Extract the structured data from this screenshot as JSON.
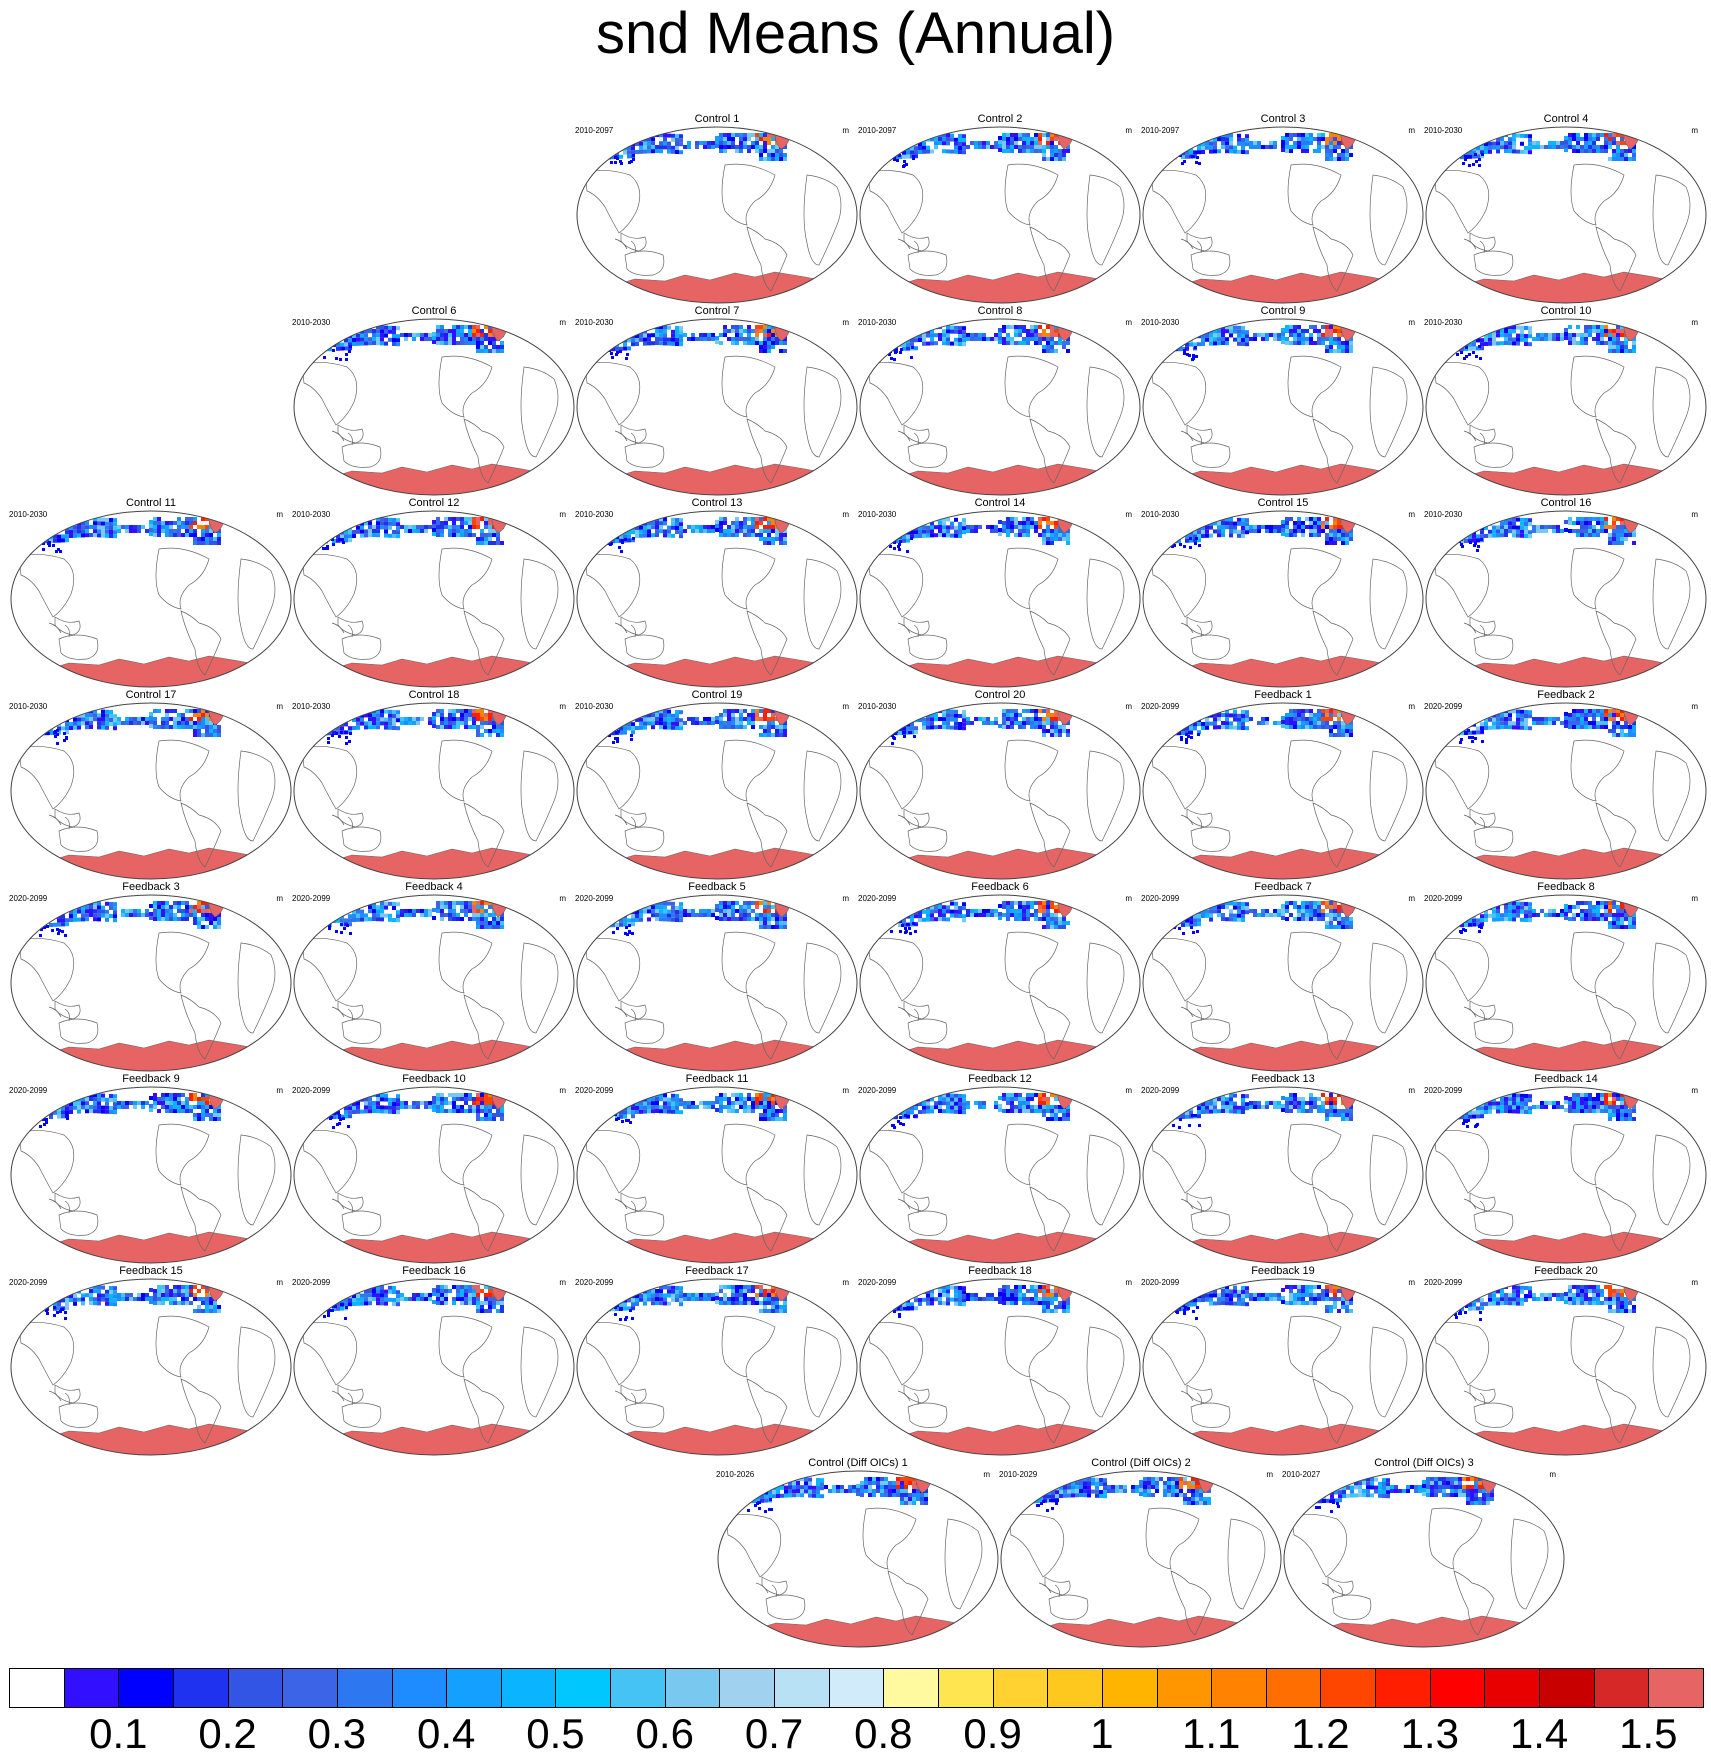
{
  "title": "snd Means (Annual)",
  "units": "m",
  "panels": [
    {
      "title": "Control 1",
      "period": "2010-2097"
    },
    {
      "title": "Control 2",
      "period": "2010-2097"
    },
    {
      "title": "Control 3",
      "period": "2010-2097"
    },
    {
      "title": "Control 4",
      "period": "2010-2030"
    },
    {
      "title": "Control 6",
      "period": "2010-2030"
    },
    {
      "title": "Control 7",
      "period": "2010-2030"
    },
    {
      "title": "Control 8",
      "period": "2010-2030"
    },
    {
      "title": "Control 9",
      "period": "2010-2030"
    },
    {
      "title": "Control 10",
      "period": "2010-2030"
    },
    {
      "title": "Control 11",
      "period": "2010-2030"
    },
    {
      "title": "Control 12",
      "period": "2010-2030"
    },
    {
      "title": "Control 13",
      "period": "2010-2030"
    },
    {
      "title": "Control 14",
      "period": "2010-2030"
    },
    {
      "title": "Control 15",
      "period": "2010-2030"
    },
    {
      "title": "Control 16",
      "period": "2010-2030"
    },
    {
      "title": "Control 17",
      "period": "2010-2030"
    },
    {
      "title": "Control 18",
      "period": "2010-2030"
    },
    {
      "title": "Control 19",
      "period": "2010-2030"
    },
    {
      "title": "Control 20",
      "period": "2010-2030"
    },
    {
      "title": "Feedback 1",
      "period": "2020-2099"
    },
    {
      "title": "Feedback 2",
      "period": "2020-2099"
    },
    {
      "title": "Feedback 3",
      "period": "2020-2099"
    },
    {
      "title": "Feedback 4",
      "period": "2020-2099"
    },
    {
      "title": "Feedback 5",
      "period": "2020-2099"
    },
    {
      "title": "Feedback 6",
      "period": "2020-2099"
    },
    {
      "title": "Feedback 7",
      "period": "2020-2099"
    },
    {
      "title": "Feedback 8",
      "period": "2020-2099"
    },
    {
      "title": "Feedback 9",
      "period": "2020-2099"
    },
    {
      "title": "Feedback 10",
      "period": "2020-2099"
    },
    {
      "title": "Feedback 11",
      "period": "2020-2099"
    },
    {
      "title": "Feedback 12",
      "period": "2020-2099"
    },
    {
      "title": "Feedback 13",
      "period": "2020-2099"
    },
    {
      "title": "Feedback 14",
      "period": "2020-2099"
    },
    {
      "title": "Feedback 15",
      "period": "2020-2099"
    },
    {
      "title": "Feedback 16",
      "period": "2020-2099"
    },
    {
      "title": "Feedback 17",
      "period": "2020-2099"
    },
    {
      "title": "Feedback 18",
      "period": "2020-2099"
    },
    {
      "title": "Feedback 19",
      "period": "2020-2099"
    },
    {
      "title": "Feedback 20",
      "period": "2020-2099"
    },
    {
      "title": "Control (Diff OICs) 1",
      "period": "2010-2026"
    },
    {
      "title": "Control (Diff OICs) 2",
      "period": "2010-2029"
    },
    {
      "title": "Control (Diff OICs) 3",
      "period": "2010-2027"
    }
  ],
  "colorbar": {
    "labels": [
      "0.1",
      "0.2",
      "0.3",
      "0.4",
      "0.5",
      "0.6",
      "0.7",
      "0.8",
      "0.9",
      "1",
      "1.1",
      "1.2",
      "1.3",
      "1.4",
      "1.5"
    ],
    "colors": [
      "#ffffff",
      "#3210ff",
      "#0000ff",
      "#1e32f0",
      "#3255e6",
      "#3c64e6",
      "#2d78f0",
      "#1e8cff",
      "#14a0ff",
      "#0ab4ff",
      "#00c8ff",
      "#46c3f5",
      "#78c8f0",
      "#a0d2f0",
      "#b9e1f5",
      "#d2ebfa",
      "#fffaa0",
      "#ffe650",
      "#ffd232",
      "#ffc81e",
      "#ffb400",
      "#ff9600",
      "#ff8200",
      "#ff6e00",
      "#ff4600",
      "#ff1e00",
      "#ff0000",
      "#e60000",
      "#c80000",
      "#d72828",
      "#e66464"
    ]
  }
}
